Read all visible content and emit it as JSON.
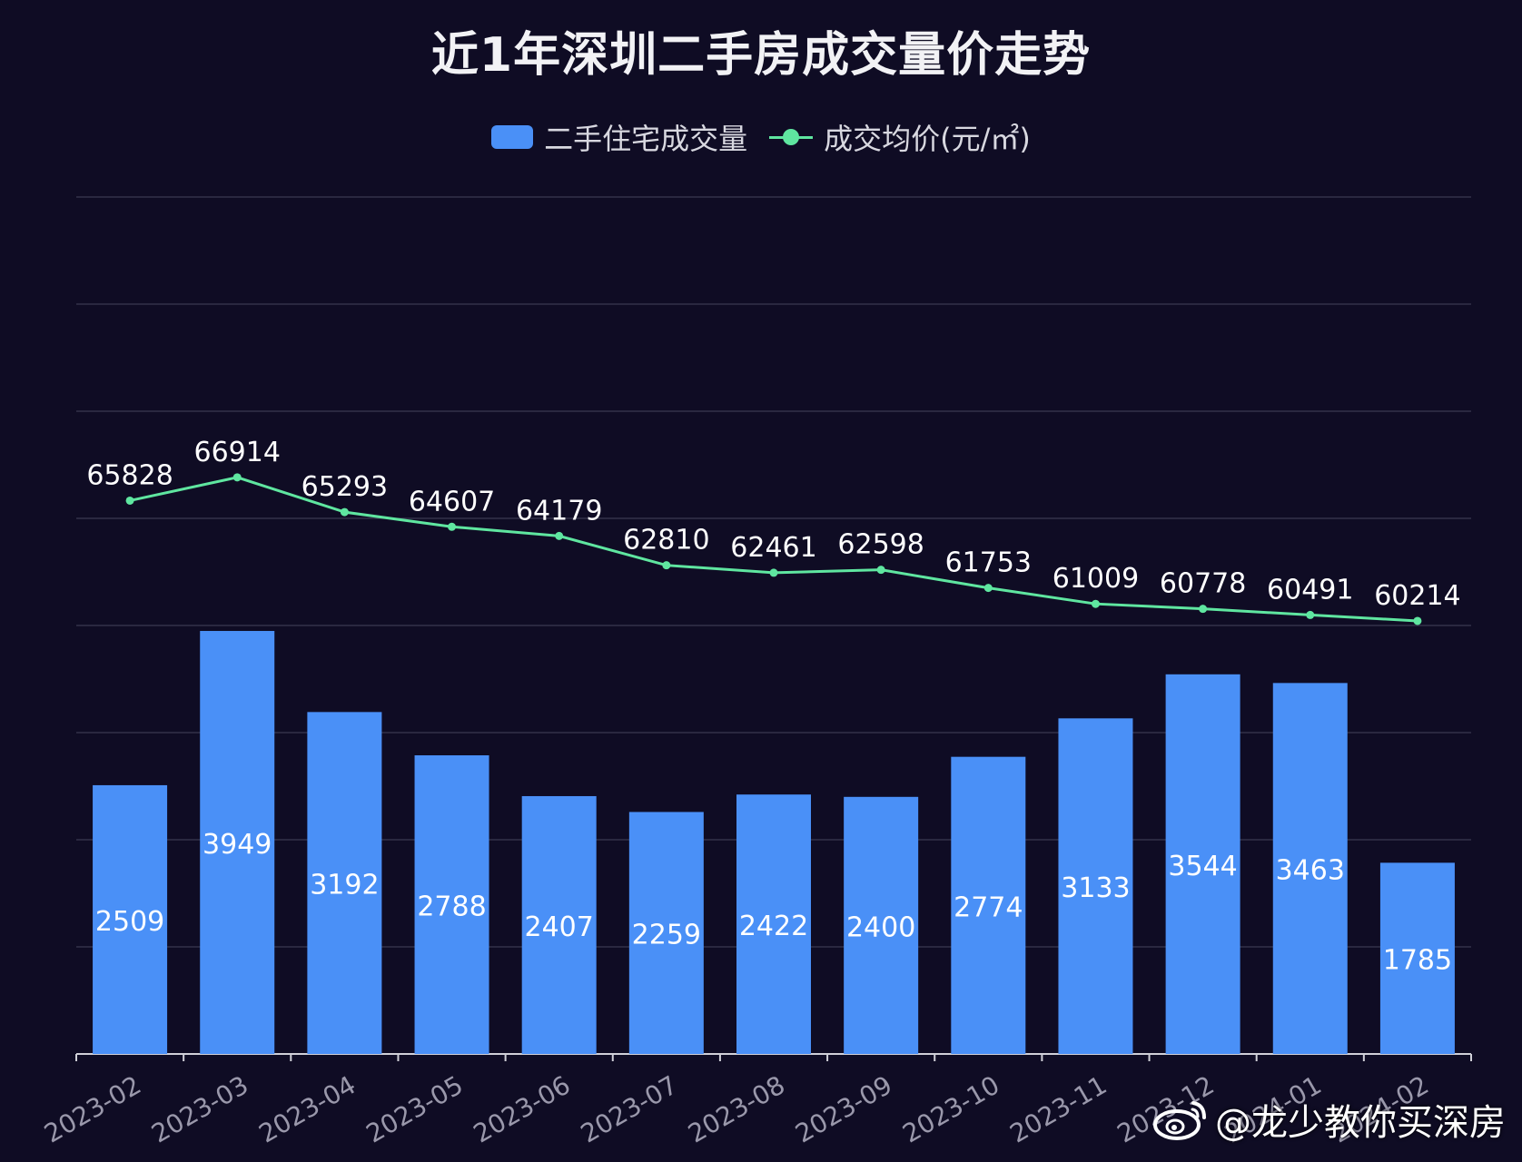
{
  "chart_data": {
    "type": "bar",
    "title": "近1年深圳二手房成交量价走势",
    "xlabel": "",
    "ylabel": "",
    "categories": [
      "2023-02",
      "2023-03",
      "2023-04",
      "2023-05",
      "2023-06",
      "2023-07",
      "2023-08",
      "2023-09",
      "2023-10",
      "2023-11",
      "2023-12",
      "2024-01",
      "2024-02"
    ],
    "series": [
      {
        "name": "二手住宅成交量",
        "type": "bar",
        "axis": "left",
        "color": "#4a90f7",
        "values": [
          2509,
          3949,
          3192,
          2788,
          2407,
          2259,
          2422,
          2400,
          2774,
          3133,
          3544,
          3463,
          1785
        ]
      },
      {
        "name": "成交均价(元/㎡)",
        "type": "line",
        "axis": "right",
        "color": "#5fe6a0",
        "values": [
          65828,
          66914,
          65293,
          64607,
          64179,
          62810,
          62461,
          62598,
          61753,
          61009,
          60778,
          60491,
          60214
        ]
      }
    ],
    "grid": true,
    "legend_position": "top-center"
  },
  "watermark": {
    "text": "@龙少教你买深房",
    "icon": "weibo-icon"
  },
  "colors": {
    "background": "#0f0c24",
    "bar": "#4a90f7",
    "line": "#5fe6a0",
    "grid": "#3a3850",
    "text": "#ffffff",
    "axis_label": "#9a98ab"
  }
}
